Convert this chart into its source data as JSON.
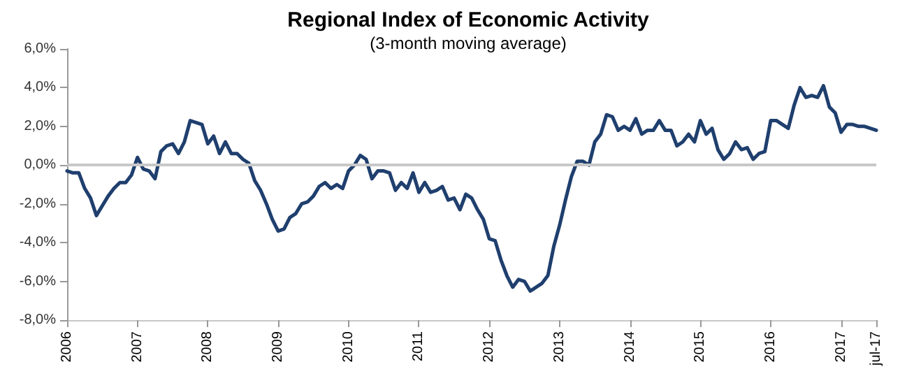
{
  "chart_data": {
    "type": "line",
    "title": "Regional Index of Economic Activity",
    "subtitle": "(3-month moving average)",
    "categories": [
      "2006",
      null,
      null,
      null,
      null,
      null,
      null,
      null,
      null,
      null,
      null,
      null,
      "2007",
      null,
      null,
      null,
      null,
      null,
      null,
      null,
      null,
      null,
      null,
      null,
      "2008",
      null,
      null,
      null,
      null,
      null,
      null,
      null,
      null,
      null,
      null,
      null,
      "2009",
      null,
      null,
      null,
      null,
      null,
      null,
      null,
      null,
      null,
      null,
      null,
      "2010",
      null,
      null,
      null,
      null,
      null,
      null,
      null,
      null,
      null,
      null,
      null,
      "2011",
      null,
      null,
      null,
      null,
      null,
      null,
      null,
      null,
      null,
      null,
      null,
      "2012",
      null,
      null,
      null,
      null,
      null,
      null,
      null,
      null,
      null,
      null,
      null,
      "2013",
      null,
      null,
      null,
      null,
      null,
      null,
      null,
      null,
      null,
      null,
      null,
      "2014",
      null,
      null,
      null,
      null,
      null,
      null,
      null,
      null,
      null,
      null,
      null,
      "2015",
      null,
      null,
      null,
      null,
      null,
      null,
      null,
      null,
      null,
      null,
      null,
      "2016",
      null,
      null,
      null,
      null,
      null,
      null,
      null,
      null,
      null,
      null,
      null,
      "2017",
      null,
      null,
      null,
      null,
      null,
      "jul-17"
    ],
    "series": [
      {
        "color": "#1f3f6e",
        "values": [
          -0.3,
          -0.4,
          -0.4,
          -1.2,
          -1.7,
          -2.6,
          -2.1,
          -1.6,
          -1.2,
          -0.9,
          -0.9,
          -0.5,
          0.4,
          -0.2,
          -0.3,
          -0.7,
          0.7,
          1.0,
          1.1,
          0.6,
          1.2,
          2.3,
          2.2,
          2.1,
          1.1,
          1.5,
          0.6,
          1.2,
          0.6,
          0.6,
          0.3,
          0.1,
          -0.8,
          -1.3,
          -2.0,
          -2.8,
          -3.4,
          -3.3,
          -2.7,
          -2.5,
          -2.0,
          -1.9,
          -1.6,
          -1.1,
          -0.9,
          -1.2,
          -1.0,
          -1.2,
          -0.3,
          0.0,
          0.5,
          0.3,
          -0.7,
          -0.3,
          -0.3,
          -0.4,
          -1.3,
          -0.9,
          -1.2,
          -0.4,
          -1.4,
          -0.9,
          -1.4,
          -1.3,
          -1.1,
          -1.8,
          -1.7,
          -2.3,
          -1.5,
          -1.7,
          -2.3,
          -2.8,
          -3.8,
          -3.9,
          -4.9,
          -5.7,
          -6.3,
          -5.9,
          -6.0,
          -6.5,
          -6.3,
          -6.1,
          -5.7,
          -4.2,
          -3.1,
          -1.8,
          -0.6,
          0.2,
          0.2,
          0.0,
          1.2,
          1.6,
          2.6,
          2.5,
          1.8,
          2.0,
          1.8,
          2.4,
          1.6,
          1.8,
          1.8,
          2.3,
          1.8,
          1.8,
          1.0,
          1.2,
          1.6,
          1.2,
          2.3,
          1.6,
          1.9,
          0.8,
          0.3,
          0.6,
          1.2,
          0.8,
          0.9,
          0.3,
          0.6,
          0.7,
          2.3,
          2.3,
          2.1,
          1.9,
          3.1,
          4.0,
          3.5,
          3.6,
          3.5,
          4.1,
          3.0,
          2.7,
          1.7,
          2.1,
          2.1,
          2.0,
          2.0,
          1.9,
          1.8
        ]
      }
    ],
    "ylim": [
      -8,
      6
    ],
    "yticks": [
      {
        "value": -8,
        "label": "-8,0%"
      },
      {
        "value": -6,
        "label": "-6,0%"
      },
      {
        "value": -4,
        "label": "-4,0%"
      },
      {
        "value": -2,
        "label": "-2,0%"
      },
      {
        "value": 0,
        "label": "0,0%"
      },
      {
        "value": 2,
        "label": "2,0%"
      },
      {
        "value": 4,
        "label": "4,0%"
      },
      {
        "value": 6,
        "label": "6,0%"
      }
    ],
    "ref_lines": [
      {
        "axis": "y",
        "value": 0,
        "color": "#c8c8c8"
      }
    ],
    "grid": false,
    "marker": "none",
    "line_style": "solid"
  }
}
